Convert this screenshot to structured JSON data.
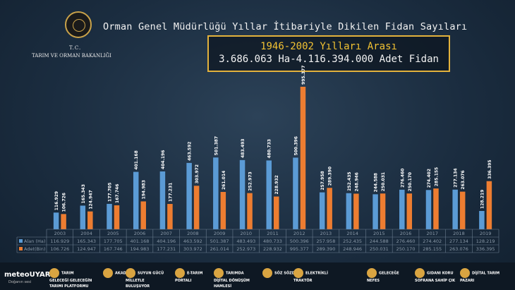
{
  "header": {
    "title": "Orman Genel Müdürlüğü Yıllar İtibariyle Dikilen Fidan Sayıları",
    "tc": "T.C.",
    "ministry": "TARIM VE ORMAN BAKANLIĞI",
    "period": "1946-2002 Yılları Arası",
    "period_total": "3.686.063 Ha-4.116.394.000 Adet Fidan"
  },
  "colors": {
    "alan": "#5b9bd5",
    "adet": "#ed7d31",
    "box_border": "#e3b23c"
  },
  "chart_data": {
    "type": "bar",
    "categories": [
      "2003",
      "2004",
      "2005",
      "2006",
      "2007",
      "2008",
      "2009",
      "2010",
      "2011",
      "2012",
      "2013",
      "2014",
      "2015",
      "2016",
      "2017",
      "2018",
      "2019"
    ],
    "series": [
      {
        "name": "Alan (Ha)",
        "values": [
          116.929,
          165.343,
          177.705,
          401.168,
          404.196,
          463.592,
          501.387,
          483.493,
          480.733,
          500.396,
          257.958,
          252.435,
          244.588,
          276.46,
          274.402,
          277.134,
          128.219
        ],
        "labels": [
          "116.929",
          "165.343",
          "177.705",
          "401.168",
          "404.196",
          "463.592",
          "501.387",
          "483.493",
          "480.733",
          "500.396",
          "257.958",
          "252.435",
          "244.588",
          "276.460",
          "274.402",
          "277.134",
          "128.219"
        ]
      },
      {
        "name": "Adet(Bin)",
        "values": [
          106.726,
          124.947,
          167.746,
          194.983,
          177.231,
          303.972,
          261.014,
          252.973,
          228.932,
          995.377,
          289.39,
          248.946,
          250.031,
          250.17,
          285.155,
          263.076,
          336.395
        ],
        "labels": [
          "106.726",
          "124.947",
          "167.746",
          "194.983",
          "177.231",
          "303.972",
          "261.014",
          "252.973",
          "228.932",
          "995.377",
          "289.390",
          "248.946",
          "250.031",
          "250.170",
          "285.155",
          "263.076",
          "336.395"
        ]
      }
    ],
    "ylim": [
      0,
      1000
    ],
    "grid": false,
    "legend": "table-below"
  },
  "footer": {
    "meteo": "meteoUYARI",
    "meteo_sub": "Doğanın sesi",
    "items": [
      "TARIM GELECEĞİ GELECEĞİN TARIMI PLATFORMU",
      "AKADEMİ",
      "SUYUN GÜCÜ MİLLETLE BULUŞUYOR",
      "E-TARIM PORTALI",
      "TARIMDA DİJİTAL DÖNÜŞÜM HAMLESİ",
      "SÖZ SÖZDE",
      "ELEKTRİKLİ TRAKTÖR",
      "GELECEĞE NEFES",
      "GIDANI KORU SOFRANA SAHİP ÇIK",
      "DİJİTAL TARIM PAZARI"
    ]
  }
}
